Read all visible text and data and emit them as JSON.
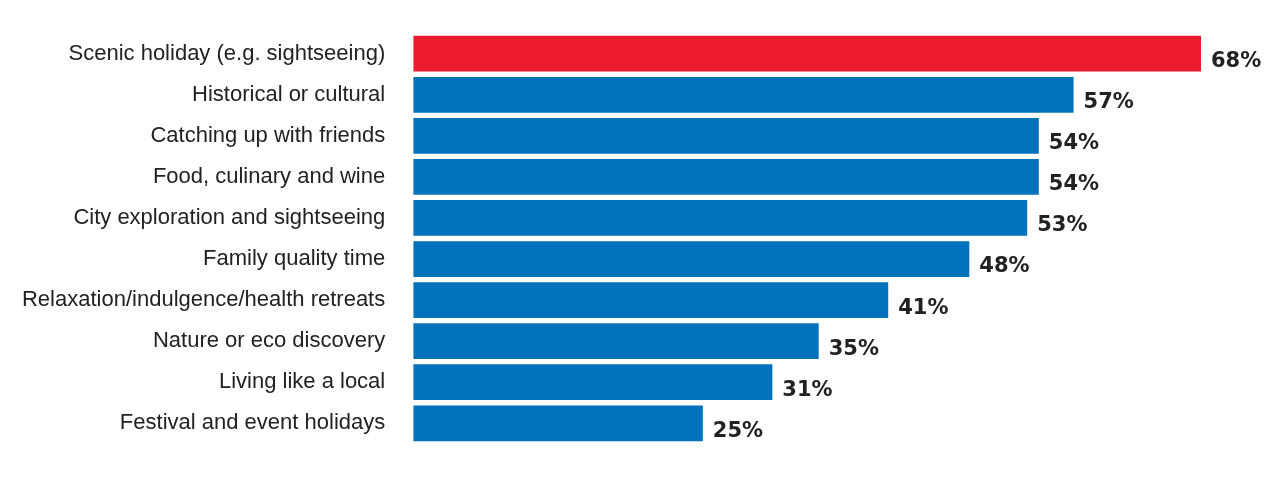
{
  "chart_data": {
    "type": "bar",
    "orientation": "horizontal",
    "categories": [
      "Scenic holiday (e.g. sightseeing)",
      "Historical or cultural",
      "Catching up with friends",
      "Food, culinary and wine",
      "City exploration and sightseeing",
      "Family quality time",
      "Relaxation/indulgence/health retreats",
      "Nature or eco discovery",
      "Living like a local",
      "Festival and event holidays"
    ],
    "values": [
      68,
      57,
      54,
      54,
      53,
      48,
      41,
      35,
      31,
      25
    ],
    "colors": [
      "#ed1c2e",
      "#0072bc",
      "#0072bc",
      "#0072bc",
      "#0072bc",
      "#0072bc",
      "#0072bc",
      "#0072bc",
      "#0072bc",
      "#0072bc"
    ],
    "value_labels": [
      "68%",
      "57%",
      "54%",
      "54%",
      "53%",
      "48%",
      "41%",
      "35%",
      "31%",
      "25%"
    ],
    "xlim": [
      0,
      68
    ],
    "tick_labels": "y",
    "legend": false
  }
}
